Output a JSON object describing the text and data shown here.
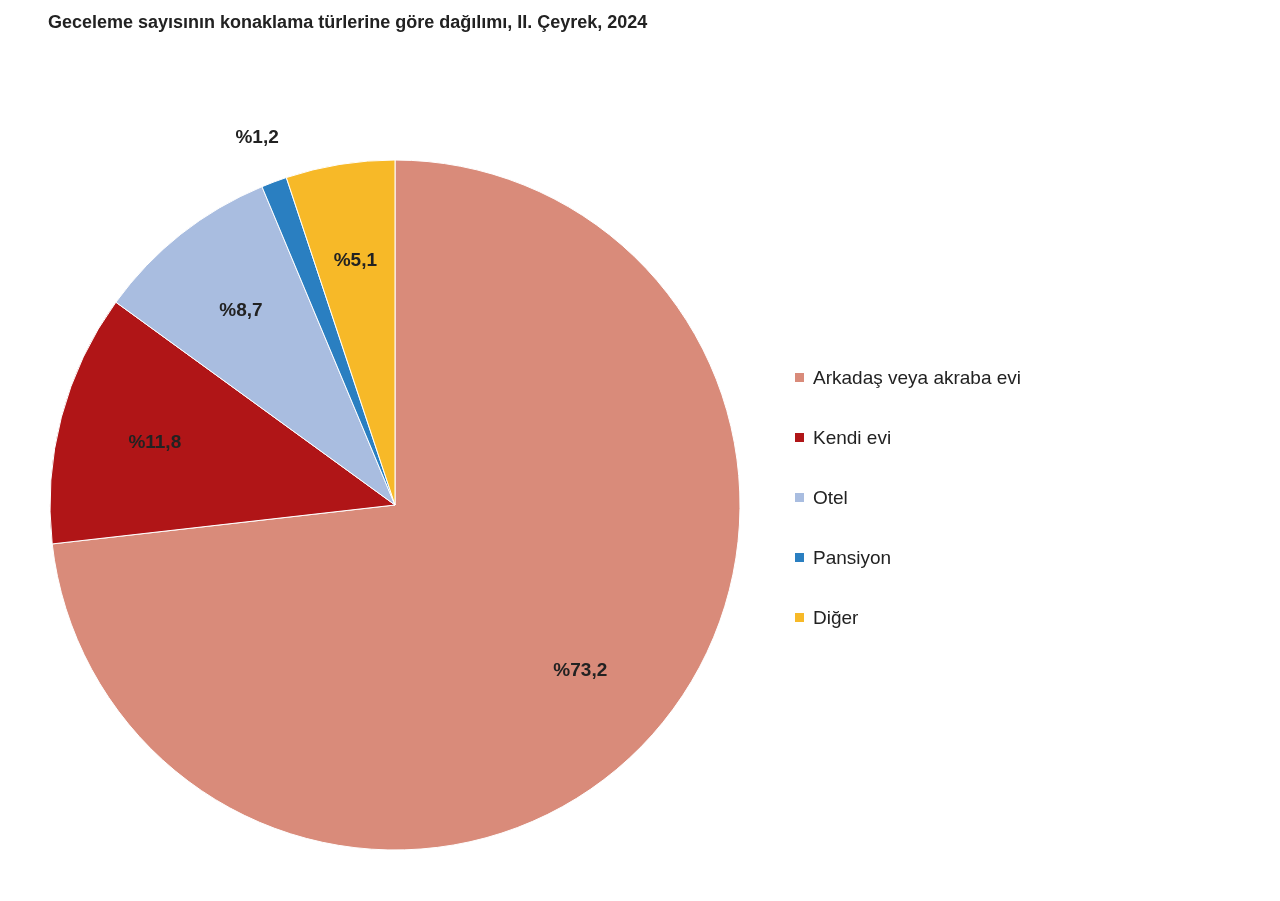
{
  "chart_data": {
    "type": "pie",
    "title": "Geceleme sayısının konaklama türlerine göre dağılımı, II. Çeyrek, 2024",
    "categories": [
      "Arkadaş veya akraba evi",
      "Kendi evi",
      "Otel",
      "Pansiyon",
      "Diğer"
    ],
    "values": [
      73.2,
      11.8,
      8.7,
      1.2,
      5.1
    ],
    "colors": [
      "#d98b7a",
      "#b01517",
      "#a9bde0",
      "#2a7fc1",
      "#f7b928"
    ],
    "value_labels": [
      "%73,2",
      "%11,8",
      "%8,7",
      "%1,2",
      "%5,1"
    ],
    "legend": "right"
  }
}
